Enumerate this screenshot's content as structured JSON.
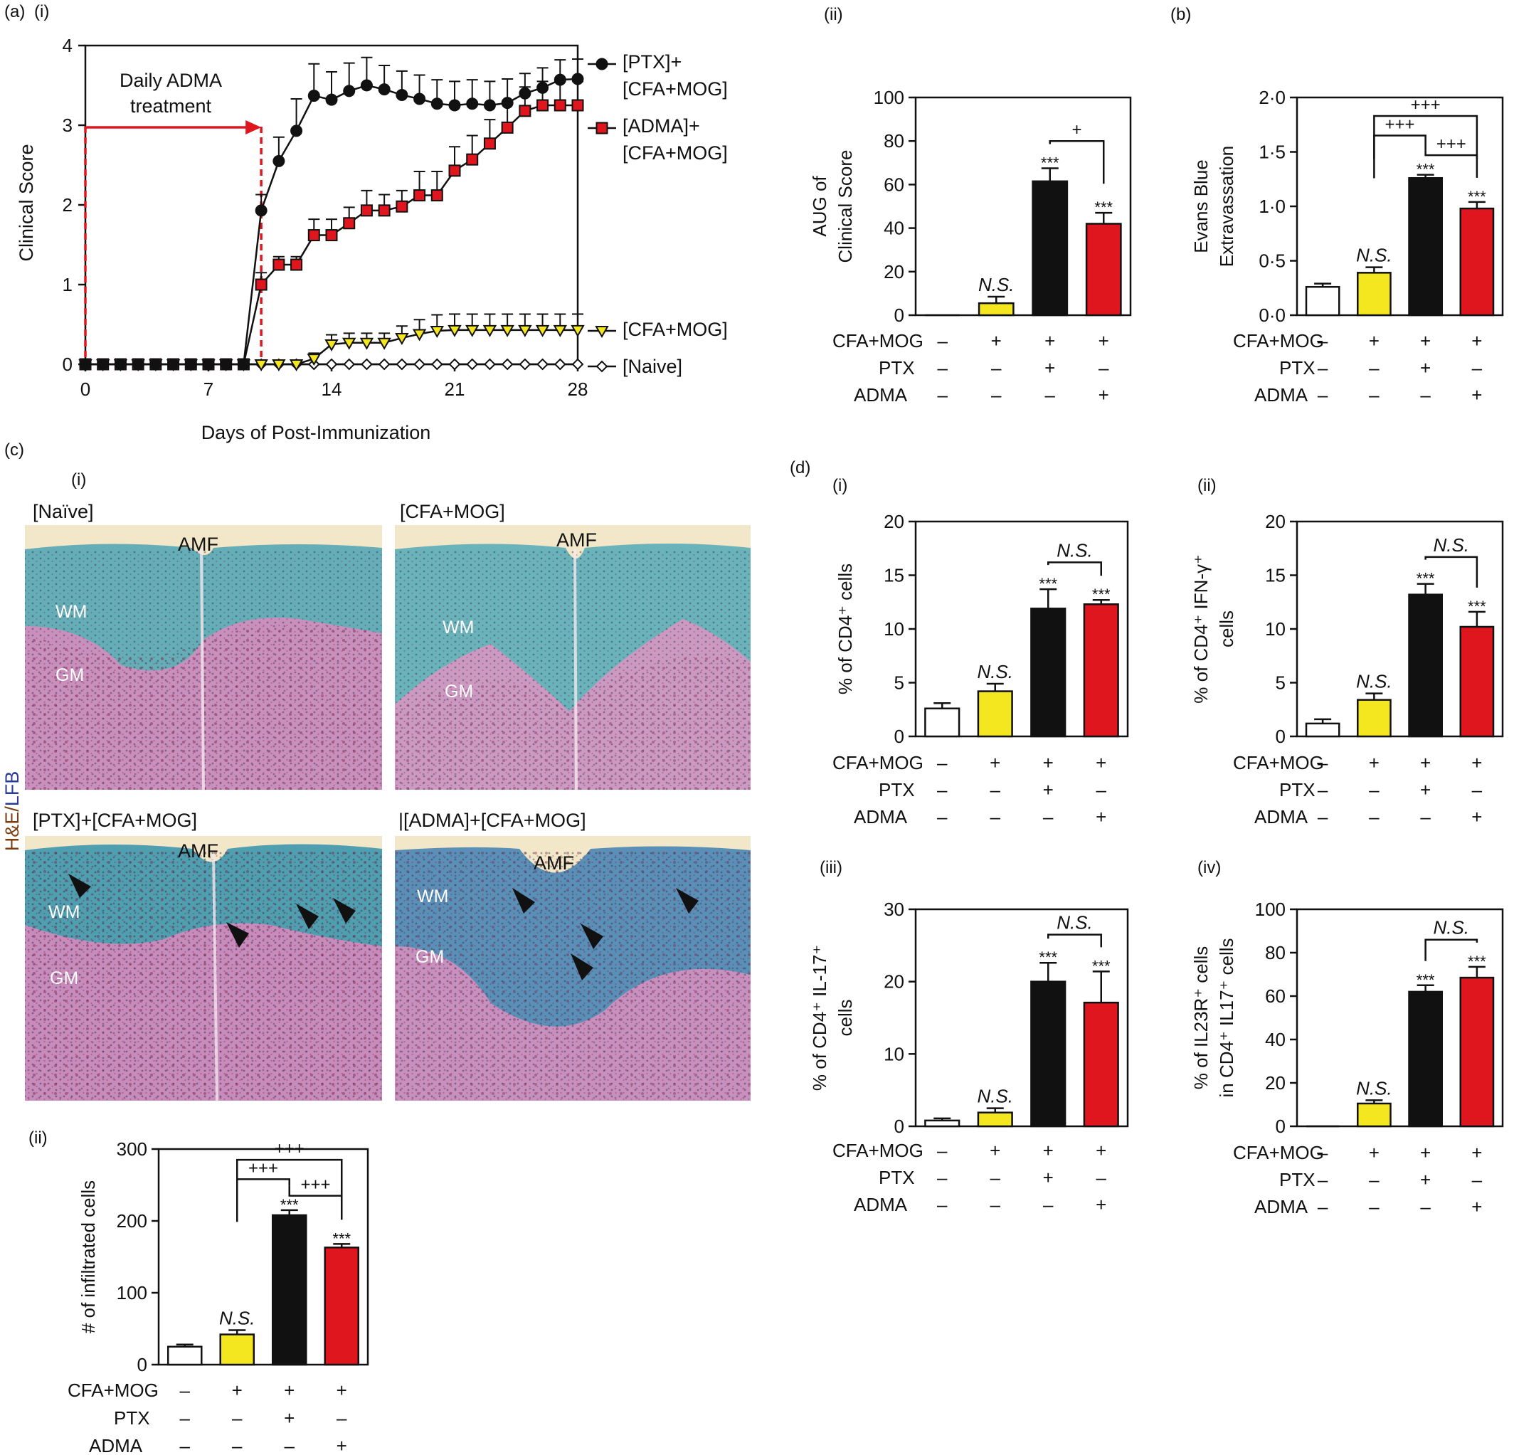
{
  "panel_labels": {
    "a": "(a)",
    "a_i": "(i)",
    "a_ii": "(ii)",
    "b": "(b)",
    "c": "(c)",
    "c_i": "(i)",
    "c_ii": "(ii)",
    "d": "(d)",
    "d_i": "(i)",
    "d_ii": "(ii)",
    "d_iii": "(iii)",
    "d_iv": "(iv)"
  },
  "colors": {
    "naive": "#ffffff",
    "cfa": "#f4e71f",
    "ptx": "#111111",
    "adma": "#e0161f",
    "arrow": "#e0161f"
  },
  "group_labels": {
    "rows": [
      "CFA+MOG",
      "PTX",
      "ADMA"
    ],
    "signs": [
      [
        "–",
        "+",
        "+",
        "+"
      ],
      [
        "–",
        "–",
        "+",
        "–"
      ],
      [
        "–",
        "–",
        "–",
        "+"
      ]
    ]
  },
  "markers": {
    "ns": "N.S.",
    "sig": "***",
    "plus1": "+",
    "plus3": "+++"
  },
  "histology": {
    "stain_he": "H&E/",
    "stain_lfb": "LFB",
    "panels": [
      {
        "title": "[Naïve]",
        "labels": [
          "AMF",
          "WM",
          "GM"
        ]
      },
      {
        "title": "[CFA+MOG]",
        "labels": [
          "AMF",
          "WM",
          "GM"
        ]
      },
      {
        "title": "[PTX]+[CFA+MOG]",
        "labels": [
          "AMF",
          "WM",
          "GM"
        ]
      },
      {
        "title": "|[ADMA]+[CFA+MOG]",
        "labels": [
          "AMF",
          "WM",
          "GM"
        ]
      }
    ]
  },
  "chart_data": [
    {
      "id": "a_i",
      "type": "line",
      "xlabel": "Days of Post-Immunization",
      "ylabel": "Clinical Score",
      "xlim": [
        0,
        28
      ],
      "ylim": [
        0,
        4
      ],
      "xticks": [
        0,
        7,
        14,
        21,
        28
      ],
      "yticks": [
        0,
        1,
        2,
        3,
        4
      ],
      "annotation": [
        "Daily ADMA",
        "treatment"
      ],
      "annotation_days": [
        0,
        10
      ],
      "x": [
        0,
        1,
        2,
        3,
        4,
        5,
        6,
        7,
        8,
        9,
        10,
        11,
        12,
        13,
        14,
        15,
        16,
        17,
        18,
        19,
        20,
        21,
        22,
        23,
        24,
        25,
        26,
        27,
        28
      ],
      "series": [
        {
          "name": "[PTX]+ [CFA+MOG]",
          "legend": [
            "[PTX]+",
            "[CFA+MOG]"
          ],
          "marker": "circle",
          "color": "#111111",
          "values": [
            0,
            0,
            0,
            0,
            0,
            0,
            0,
            0,
            0,
            0,
            1.93,
            2.55,
            2.93,
            3.37,
            3.32,
            3.43,
            3.5,
            3.45,
            3.38,
            3.33,
            3.27,
            3.25,
            3.27,
            3.25,
            3.28,
            3.4,
            3.47,
            3.57,
            3.58
          ],
          "errors": [
            0,
            0,
            0,
            0,
            0,
            0,
            0,
            0,
            0,
            0,
            0.2,
            0.3,
            0.4,
            0.4,
            0.35,
            0.35,
            0.35,
            0.3,
            0.3,
            0.3,
            0.3,
            0.3,
            0.3,
            0.3,
            0.3,
            0.25,
            0.25,
            0.25,
            0.25
          ]
        },
        {
          "name": "[ADMA]+ [CFA+MOG]",
          "legend": [
            "[ADMA]+",
            "[CFA+MOG]"
          ],
          "marker": "square",
          "color": "#e0161f",
          "values": [
            0,
            0,
            0,
            0,
            0,
            0,
            0,
            0,
            0,
            0,
            1.0,
            1.25,
            1.25,
            1.62,
            1.62,
            1.77,
            1.93,
            1.93,
            1.98,
            2.12,
            2.12,
            2.43,
            2.57,
            2.77,
            2.97,
            3.18,
            3.25,
            3.25,
            3.25
          ],
          "errors": [
            0,
            0,
            0,
            0,
            0,
            0,
            0,
            0,
            0,
            0,
            0.15,
            0.1,
            0.1,
            0.2,
            0.2,
            0.2,
            0.25,
            0.2,
            0.2,
            0.3,
            0.3,
            0.3,
            0.3,
            0.3,
            0.3,
            0.3,
            0.3,
            0.3,
            0.3
          ]
        },
        {
          "name": "[CFA+MOG]",
          "legend": [
            "[CFA+MOG]"
          ],
          "marker": "triangle",
          "color": "#f4e71f",
          "values": [
            0,
            0,
            0,
            0,
            0,
            0,
            0,
            0,
            0,
            0,
            0,
            0,
            0,
            0.07,
            0.25,
            0.27,
            0.27,
            0.27,
            0.33,
            0.38,
            0.42,
            0.43,
            0.43,
            0.43,
            0.43,
            0.43,
            0.43,
            0.43,
            0.43
          ],
          "errors": [
            0,
            0,
            0,
            0,
            0,
            0,
            0,
            0,
            0,
            0,
            0,
            0,
            0,
            0.07,
            0.12,
            0.12,
            0.12,
            0.12,
            0.15,
            0.18,
            0.2,
            0.2,
            0.2,
            0.2,
            0.2,
            0.2,
            0.2,
            0.2,
            0.2
          ]
        },
        {
          "name": "[Naive]",
          "legend": [
            "[Naive]"
          ],
          "marker": "diamond",
          "color": "#ffffff",
          "values": [
            0,
            0,
            0,
            0,
            0,
            0,
            0,
            0,
            0,
            0,
            0,
            0,
            0,
            0,
            0,
            0,
            0,
            0,
            0,
            0,
            0,
            0,
            0,
            0,
            0,
            0,
            0,
            0,
            0
          ],
          "errors": [
            0,
            0,
            0,
            0,
            0,
            0,
            0,
            0,
            0,
            0,
            0,
            0,
            0,
            0,
            0,
            0,
            0,
            0,
            0,
            0,
            0,
            0,
            0,
            0,
            0,
            0,
            0,
            0,
            0
          ]
        }
      ]
    },
    {
      "id": "a_ii",
      "type": "bar",
      "ylabel": [
        "AUG of",
        "Clinical Score"
      ],
      "ylim": [
        0,
        100
      ],
      "yticks": [
        0,
        20,
        40,
        60,
        80,
        100
      ],
      "ytick_labels": [
        "0",
        "20",
        "40",
        "60",
        "80",
        "100"
      ],
      "categories": [
        "[Naive]",
        "[CFA+MOG]",
        "[PTX]+[CFA+MOG]",
        "[ADMA]+[CFA+MOG]"
      ],
      "values": [
        0,
        5.5,
        61.5,
        42
      ],
      "errors": [
        0,
        3,
        6,
        5
      ],
      "marks": [
        "",
        "N.S.",
        "***",
        "***"
      ],
      "brackets": [
        {
          "from": 2,
          "to": 3,
          "level": 80,
          "label": "+"
        }
      ]
    },
    {
      "id": "b",
      "type": "bar",
      "ylabel": [
        "Evans Blue",
        "Extravassation"
      ],
      "ylim": [
        0,
        2.0
      ],
      "yticks": [
        0,
        0.5,
        1.0,
        1.5,
        2.0
      ],
      "ytick_labels": [
        "0·0",
        "0·5",
        "1·0",
        "1·5",
        "2·0"
      ],
      "categories": [
        "[Naive]",
        "[CFA+MOG]",
        "[PTX]+[CFA+MOG]",
        "[ADMA]+[CFA+MOG]"
      ],
      "values": [
        0.26,
        0.39,
        1.26,
        0.98
      ],
      "errors": [
        0.03,
        0.05,
        0.03,
        0.06
      ],
      "marks": [
        "",
        "N.S.",
        "***",
        "***"
      ],
      "brackets": [
        {
          "from": 1,
          "to": 3,
          "level": 1.83,
          "label": "+++"
        },
        {
          "from": 1,
          "to": 2,
          "level": 1.65,
          "label": "+++"
        },
        {
          "from": 2,
          "to": 3,
          "level": 1.47,
          "label": "+++"
        }
      ]
    },
    {
      "id": "c_ii",
      "type": "bar",
      "ylabel": [
        "# of infiltrated cells"
      ],
      "ylim": [
        0,
        300
      ],
      "yticks": [
        0,
        100,
        200,
        300
      ],
      "ytick_labels": [
        "0",
        "100",
        "200",
        "300"
      ],
      "categories": [
        "[Naive]",
        "[CFA+MOG]",
        "[PTX]+[CFA+MOG]",
        "[ADMA]+[CFA+MOG]"
      ],
      "values": [
        25,
        42,
        208,
        163
      ],
      "errors": [
        3,
        6,
        7,
        5
      ],
      "marks": [
        "",
        "N.S.",
        "***",
        "***"
      ],
      "brackets": [
        {
          "from": 1,
          "to": 3,
          "level": 285,
          "label": "+++"
        },
        {
          "from": 1,
          "to": 2,
          "level": 258,
          "label": "+++"
        },
        {
          "from": 2,
          "to": 3,
          "level": 235,
          "label": "+++"
        }
      ]
    },
    {
      "id": "d_i",
      "type": "bar",
      "ylabel": [
        "% of CD4⁺ cells"
      ],
      "ylim": [
        0,
        20
      ],
      "yticks": [
        0,
        5,
        10,
        15,
        20
      ],
      "ytick_labels": [
        "0",
        "5",
        "10",
        "15",
        "20"
      ],
      "categories": [
        "[Naive]",
        "[CFA+MOG]",
        "[PTX]+[CFA+MOG]",
        "[ADMA]+[CFA+MOG]"
      ],
      "values": [
        2.6,
        4.2,
        11.9,
        12.3
      ],
      "errors": [
        0.5,
        0.7,
        1.8,
        0.4
      ],
      "marks": [
        "",
        "N.S.",
        "***",
        "***"
      ],
      "brackets": [
        {
          "from": 2,
          "to": 3,
          "level": 16.2,
          "label": "N.S."
        }
      ]
    },
    {
      "id": "d_ii",
      "type": "bar",
      "ylabel": [
        "% of CD4⁺ IFN-γ⁺",
        "cells"
      ],
      "ylim": [
        0,
        20
      ],
      "yticks": [
        0,
        5,
        10,
        15,
        20
      ],
      "ytick_labels": [
        "0",
        "5",
        "10",
        "15",
        "20"
      ],
      "categories": [
        "[Naive]",
        "[CFA+MOG]",
        "[PTX]+[CFA+MOG]",
        "[ADMA]+[CFA+MOG]"
      ],
      "values": [
        1.2,
        3.4,
        13.2,
        10.2
      ],
      "errors": [
        0.4,
        0.6,
        1.0,
        1.4
      ],
      "marks": [
        "",
        "N.S.",
        "***",
        "***"
      ],
      "brackets": [
        {
          "from": 2,
          "to": 3,
          "level": 16.7,
          "label": "N.S."
        }
      ]
    },
    {
      "id": "d_iii",
      "type": "bar",
      "ylabel": [
        "% of CD4⁺ IL-17⁺",
        "cells"
      ],
      "ylim": [
        0,
        30
      ],
      "yticks": [
        0,
        10,
        20,
        30
      ],
      "ytick_labels": [
        "0",
        "10",
        "20",
        "30"
      ],
      "categories": [
        "[Naive]",
        "[CFA+MOG]",
        "[PTX]+[CFA+MOG]",
        "[ADMA]+[CFA+MOG]"
      ],
      "values": [
        0.8,
        1.9,
        20.0,
        17.1
      ],
      "errors": [
        0.3,
        0.6,
        2.6,
        4.3
      ],
      "marks": [
        "",
        "N.S.",
        "***",
        "***"
      ],
      "brackets": [
        {
          "from": 2,
          "to": 3,
          "level": 26.5,
          "label": "N.S."
        }
      ]
    },
    {
      "id": "d_iv",
      "type": "bar",
      "ylabel": [
        "% of IL23R⁺ cells",
        "in CD4⁺ IL17⁺ cells"
      ],
      "ylim": [
        0,
        100
      ],
      "yticks": [
        0,
        20,
        40,
        60,
        80,
        100
      ],
      "ytick_labels": [
        "0",
        "20",
        "40",
        "60",
        "80",
        "100"
      ],
      "categories": [
        "[Naive]",
        "[CFA+MOG]",
        "[PTX]+[CFA+MOG]",
        "[ADMA]+[CFA+MOG]"
      ],
      "values": [
        0,
        10.5,
        62,
        68.5
      ],
      "errors": [
        0,
        1.5,
        3,
        5
      ],
      "marks": [
        "",
        "N.S.",
        "***",
        "***"
      ],
      "brackets": [
        {
          "from": 2,
          "to": 3,
          "level": 86,
          "label": "N.S."
        }
      ]
    }
  ]
}
